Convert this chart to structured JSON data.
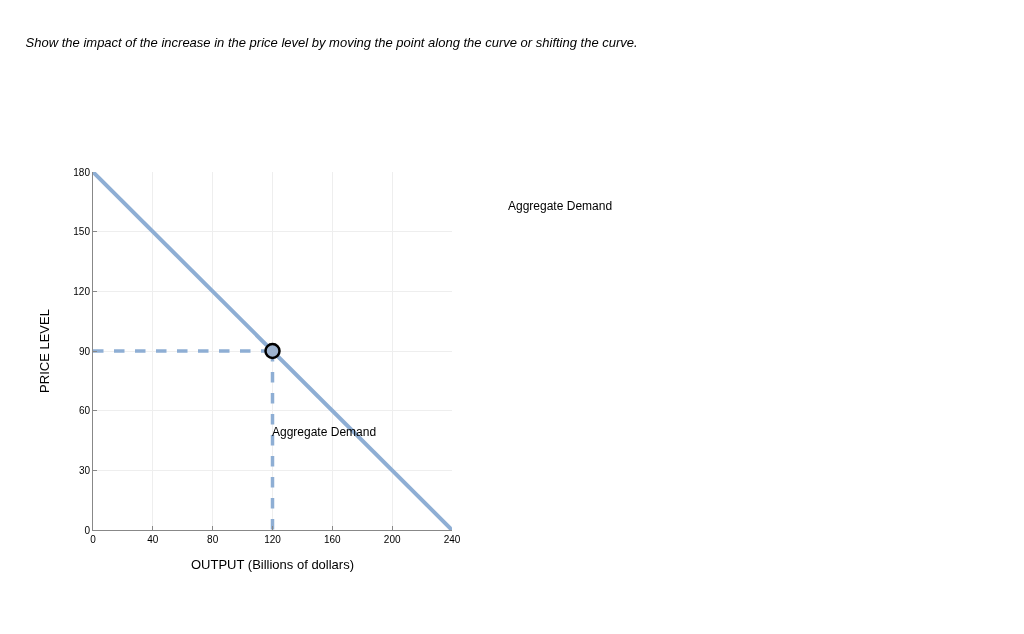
{
  "chart_data": {
    "type": "line",
    "title": "Show the impact of the increase in the price level by moving the point along the curve or shifting the curve.",
    "xlabel": "OUTPUT (Billions of dollars)",
    "ylabel": "PRICE LEVEL",
    "xlim": [
      0,
      240
    ],
    "xticks": [
      0,
      40,
      80,
      120,
      160,
      200,
      240
    ],
    "ylim": [
      0,
      180
    ],
    "yticks": [
      0,
      30,
      60,
      90,
      120,
      150,
      180
    ],
    "grid": true,
    "series": [
      {
        "x": [
          0,
          240
        ],
        "values": [
          180,
          0
        ],
        "color": "#8eaed4",
        "line_style": "solid",
        "marker": "none"
      },
      {
        "x": [
          0,
          120
        ],
        "values": [
          90,
          90
        ],
        "color": "#8eaed4",
        "line_style": "dashed",
        "marker": "none"
      },
      {
        "x": [
          120,
          120
        ],
        "values": [
          90,
          0
        ],
        "color": "#8eaed4",
        "line_style": "dashed",
        "marker": "none"
      },
      {
        "type": "scatter",
        "x": [
          120
        ],
        "values": [
          90
        ],
        "color": "#9db3d0",
        "marker": "circle"
      }
    ],
    "annotations": [
      "Aggregate Demand",
      "Aggregate Demand"
    ]
  }
}
